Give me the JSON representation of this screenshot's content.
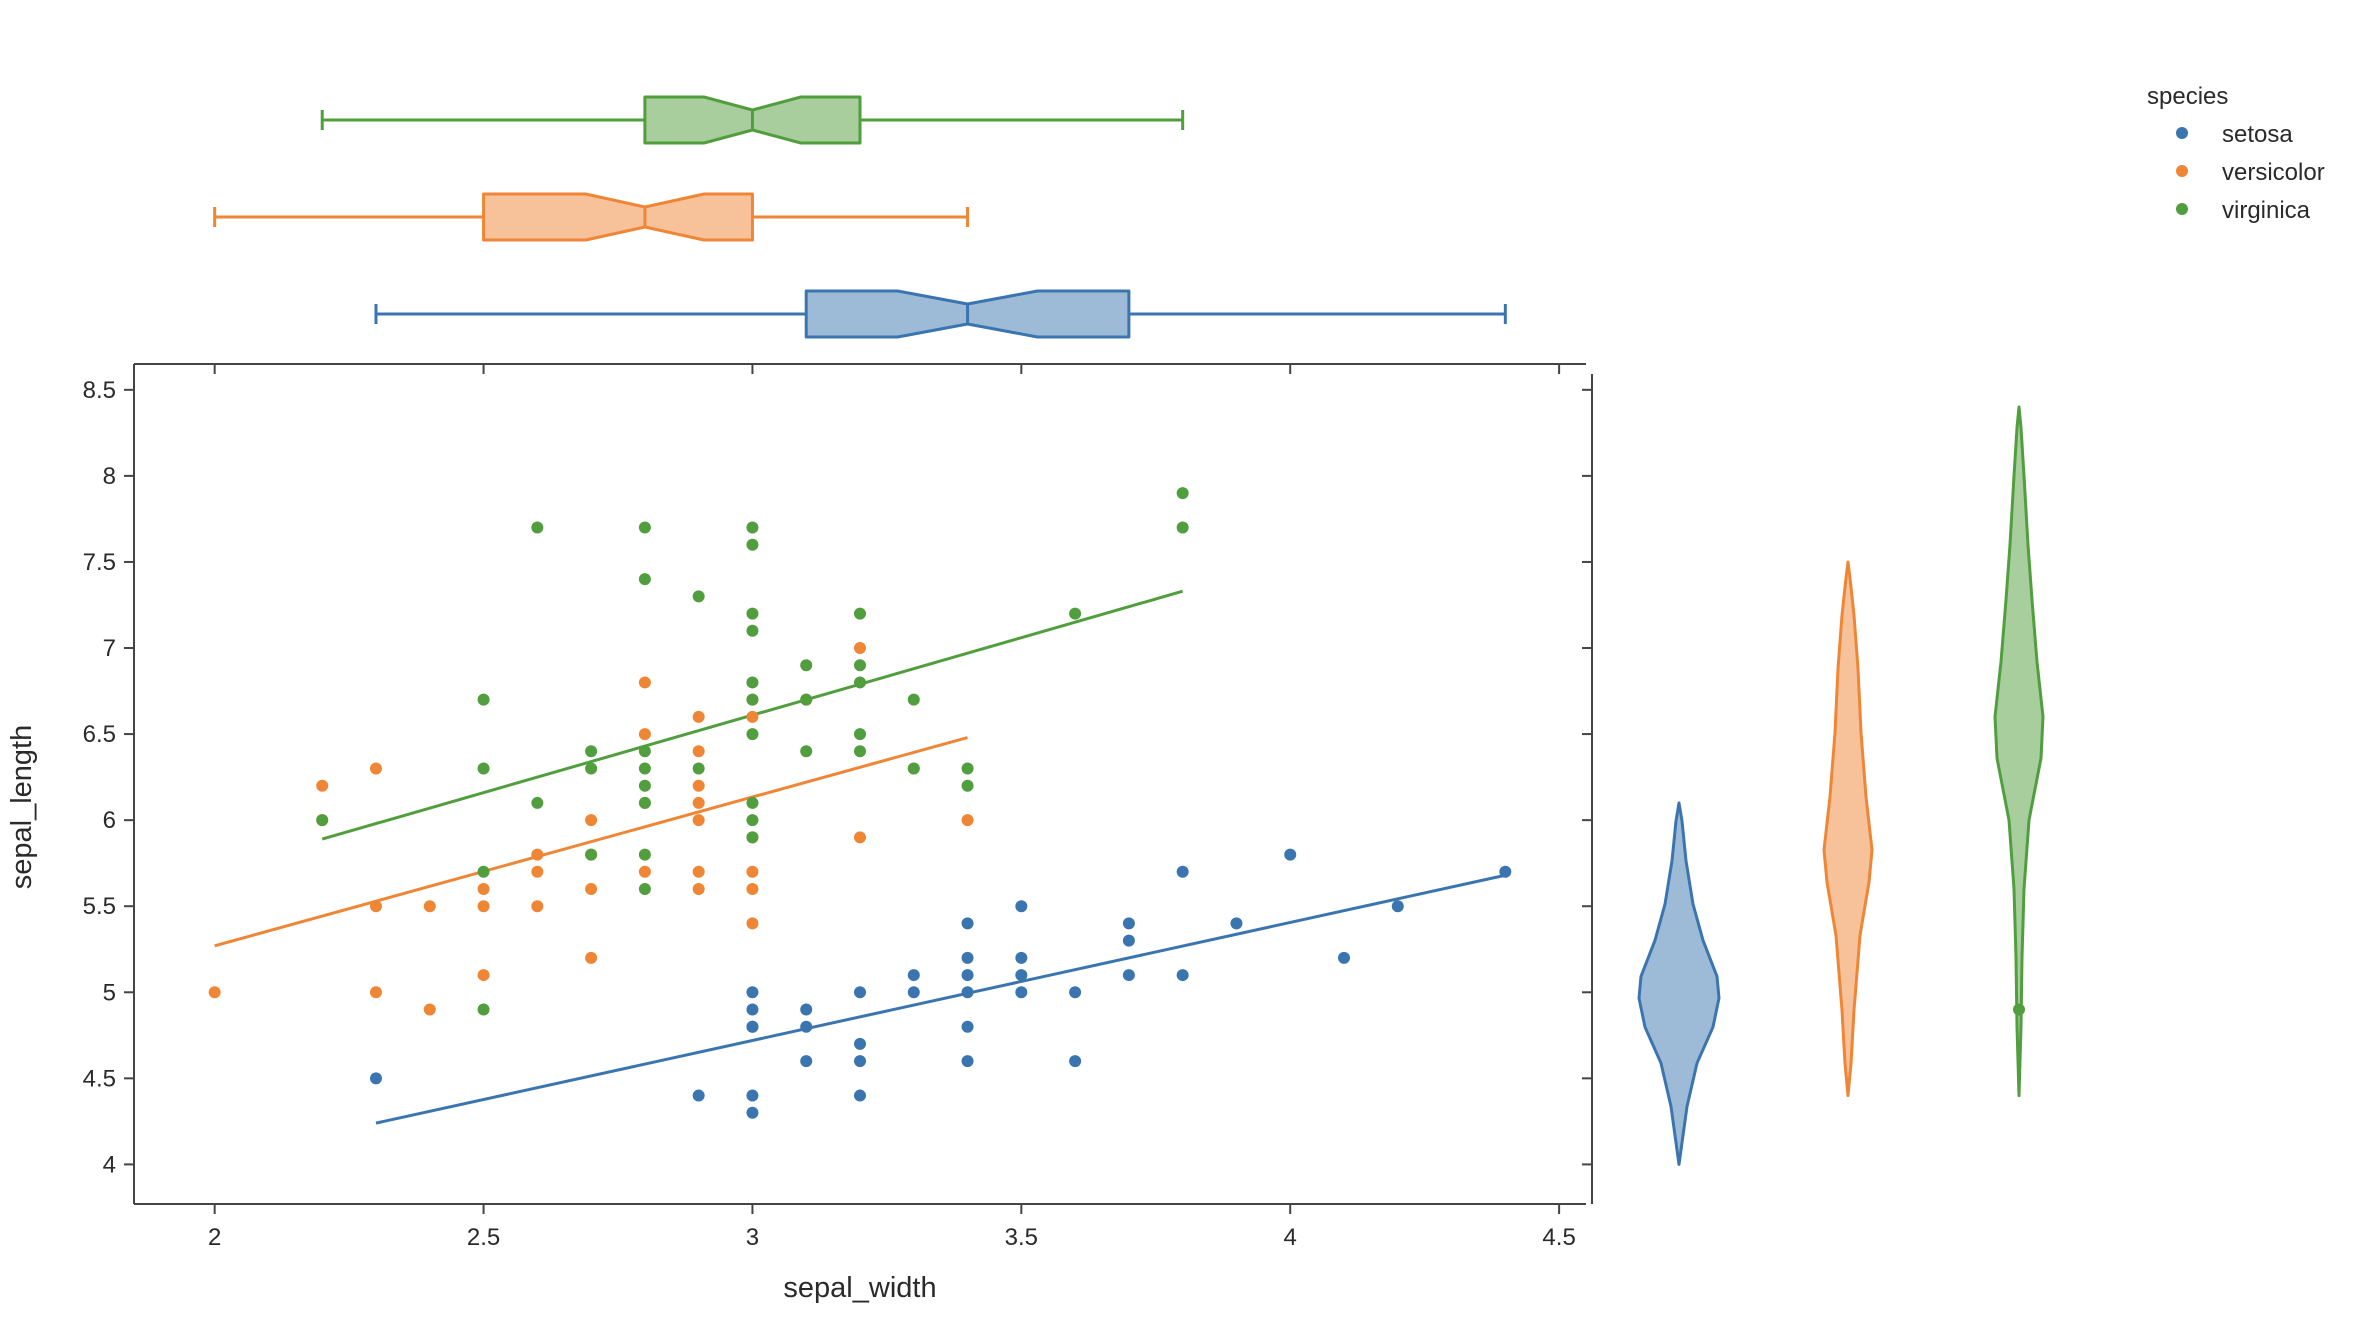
{
  "chart_data": {
    "type": "scatter",
    "xlabel": "sepal_width",
    "ylabel": "sepal_length",
    "xlim": [
      1.85,
      4.55
    ],
    "ylim": [
      3.77,
      8.65
    ],
    "x_ticks": [
      "2",
      "2.5",
      "3",
      "3.5",
      "4",
      "4.5"
    ],
    "y_ticks": [
      "4",
      "4.5",
      "5",
      "5.5",
      "6",
      "6.5",
      "7",
      "7.5",
      "8",
      "8.5"
    ],
    "grid": false,
    "legend": {
      "title": "species",
      "placement": "top-right"
    },
    "marginal_x": "box (notched)",
    "marginal_y": "violin",
    "trendline": "ols",
    "series": [
      {
        "name": "setosa",
        "color": "#3b75af",
        "points": [
          [
            2.3,
            4.5
          ],
          [
            2.9,
            4.4
          ],
          [
            3.0,
            5.0
          ],
          [
            3.0,
            4.9
          ],
          [
            3.0,
            4.8
          ],
          [
            3.0,
            4.8
          ],
          [
            3.0,
            4.4
          ],
          [
            3.0,
            4.3
          ],
          [
            3.1,
            4.9
          ],
          [
            3.1,
            4.8
          ],
          [
            3.1,
            4.6
          ],
          [
            3.2,
            5.0
          ],
          [
            3.2,
            4.7
          ],
          [
            3.2,
            4.6
          ],
          [
            3.2,
            4.4
          ],
          [
            3.3,
            5.1
          ],
          [
            3.3,
            5.0
          ],
          [
            3.4,
            5.4
          ],
          [
            3.4,
            5.2
          ],
          [
            3.4,
            5.1
          ],
          [
            3.4,
            5.0
          ],
          [
            3.4,
            4.8
          ],
          [
            3.4,
            4.6
          ],
          [
            3.5,
            5.5
          ],
          [
            3.5,
            5.2
          ],
          [
            3.5,
            5.1
          ],
          [
            3.5,
            5.0
          ],
          [
            3.6,
            5.0
          ],
          [
            3.6,
            4.6
          ],
          [
            3.7,
            5.4
          ],
          [
            3.7,
            5.3
          ],
          [
            3.7,
            5.1
          ],
          [
            3.8,
            5.7
          ],
          [
            3.8,
            5.1
          ],
          [
            3.9,
            5.4
          ],
          [
            4.0,
            5.8
          ],
          [
            4.1,
            5.2
          ],
          [
            4.2,
            5.5
          ],
          [
            4.4,
            5.7
          ]
        ],
        "trend": [
          [
            2.3,
            4.24
          ],
          [
            4.4,
            5.68
          ]
        ],
        "box": {
          "min": 2.3,
          "q1": 3.1,
          "median": 3.4,
          "q3": 3.7,
          "max": 4.4,
          "notch_low": 3.27,
          "notch_high": 3.53
        },
        "violin_range": [
          4.0,
          6.1
        ]
      },
      {
        "name": "versicolor",
        "color": "#ef8636",
        "points": [
          [
            2.0,
            5.0
          ],
          [
            2.2,
            6.2
          ],
          [
            2.2,
            6.0
          ],
          [
            2.3,
            6.3
          ],
          [
            2.3,
            5.5
          ],
          [
            2.3,
            5.0
          ],
          [
            2.4,
            5.5
          ],
          [
            2.4,
            4.9
          ],
          [
            2.5,
            5.6
          ],
          [
            2.5,
            5.5
          ],
          [
            2.5,
            5.1
          ],
          [
            2.6,
            5.8
          ],
          [
            2.6,
            5.7
          ],
          [
            2.6,
            5.5
          ],
          [
            2.7,
            6.0
          ],
          [
            2.7,
            5.8
          ],
          [
            2.7,
            5.6
          ],
          [
            2.7,
            5.2
          ],
          [
            2.8,
            6.8
          ],
          [
            2.8,
            6.5
          ],
          [
            2.8,
            6.1
          ],
          [
            2.8,
            5.7
          ],
          [
            2.9,
            6.6
          ],
          [
            2.9,
            6.4
          ],
          [
            2.9,
            6.2
          ],
          [
            2.9,
            6.1
          ],
          [
            2.9,
            6.0
          ],
          [
            2.9,
            5.7
          ],
          [
            2.9,
            5.6
          ],
          [
            3.0,
            6.7
          ],
          [
            3.0,
            6.6
          ],
          [
            3.0,
            5.9
          ],
          [
            3.0,
            5.7
          ],
          [
            3.0,
            5.6
          ],
          [
            3.0,
            5.4
          ],
          [
            3.1,
            6.7
          ],
          [
            3.2,
            7.0
          ],
          [
            3.2,
            5.9
          ],
          [
            3.3,
            6.3
          ],
          [
            3.4,
            6.0
          ]
        ],
        "trend": [
          [
            2.0,
            5.27
          ],
          [
            3.4,
            6.48
          ]
        ],
        "box": {
          "min": 2.0,
          "q1": 2.5,
          "median": 2.8,
          "q3": 3.0,
          "max": 3.4,
          "notch_low": 2.69,
          "notch_high": 2.91
        },
        "violin_range": [
          4.4,
          7.5
        ]
      },
      {
        "name": "virginica",
        "color": "#519e3e",
        "points": [
          [
            2.2,
            6.0
          ],
          [
            2.5,
            6.7
          ],
          [
            2.5,
            6.3
          ],
          [
            2.5,
            5.7
          ],
          [
            2.5,
            4.9
          ],
          [
            2.6,
            7.7
          ],
          [
            2.6,
            6.1
          ],
          [
            2.7,
            6.4
          ],
          [
            2.7,
            6.3
          ],
          [
            2.7,
            5.8
          ],
          [
            2.8,
            7.7
          ],
          [
            2.8,
            7.4
          ],
          [
            2.8,
            6.4
          ],
          [
            2.8,
            6.3
          ],
          [
            2.8,
            6.2
          ],
          [
            2.8,
            6.1
          ],
          [
            2.8,
            5.8
          ],
          [
            2.8,
            5.6
          ],
          [
            2.9,
            7.3
          ],
          [
            2.9,
            6.3
          ],
          [
            3.0,
            7.7
          ],
          [
            3.0,
            7.6
          ],
          [
            3.0,
            7.2
          ],
          [
            3.0,
            7.1
          ],
          [
            3.0,
            6.8
          ],
          [
            3.0,
            6.7
          ],
          [
            3.0,
            6.5
          ],
          [
            3.0,
            6.1
          ],
          [
            3.0,
            6.0
          ],
          [
            3.0,
            5.9
          ],
          [
            3.1,
            6.9
          ],
          [
            3.1,
            6.7
          ],
          [
            3.1,
            6.4
          ],
          [
            3.2,
            7.2
          ],
          [
            3.2,
            6.9
          ],
          [
            3.2,
            6.8
          ],
          [
            3.2,
            6.5
          ],
          [
            3.2,
            6.4
          ],
          [
            3.3,
            6.7
          ],
          [
            3.3,
            6.3
          ],
          [
            3.4,
            6.3
          ],
          [
            3.4,
            6.2
          ],
          [
            3.6,
            7.2
          ],
          [
            3.8,
            7.9
          ],
          [
            3.8,
            7.7
          ]
        ],
        "trend": [
          [
            2.2,
            5.89
          ],
          [
            3.8,
            7.33
          ]
        ],
        "box": {
          "min": 2.2,
          "q1": 2.8,
          "median": 3.0,
          "q3": 3.2,
          "max": 3.8,
          "notch_low": 2.91,
          "notch_high": 3.09
        },
        "violin_range": [
          4.4,
          8.4
        ],
        "violin_outlier": 4.9
      }
    ]
  }
}
